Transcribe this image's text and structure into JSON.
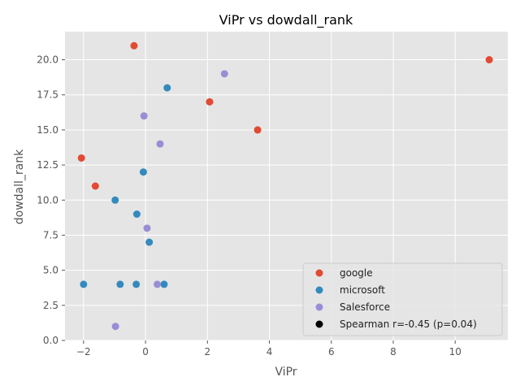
{
  "chart_data": {
    "type": "scatter",
    "title": "ViPr vs dowdall_rank",
    "xlabel": "ViPr",
    "ylabel": "dowdall_rank",
    "xlim": [
      -2.6,
      11.7
    ],
    "ylim": [
      0,
      22
    ],
    "xticks": [
      -2,
      0,
      2,
      4,
      6,
      8,
      10
    ],
    "yticks": [
      0.0,
      2.5,
      5.0,
      7.5,
      10.0,
      12.5,
      15.0,
      17.5,
      20.0
    ],
    "xtick_labels": [
      "−2",
      "0",
      "2",
      "4",
      "6",
      "8",
      "10"
    ],
    "ytick_labels": [
      "0.0",
      "2.5",
      "5.0",
      "7.5",
      "10.0",
      "12.5",
      "15.0",
      "17.5",
      "20.0"
    ],
    "grid": true,
    "legend_position": "lower-right",
    "series": [
      {
        "name": "google",
        "color": "#E24A33",
        "points": [
          {
            "x": -0.37,
            "y": 21
          },
          {
            "x": 11.1,
            "y": 20
          },
          {
            "x": 2.07,
            "y": 17
          },
          {
            "x": 3.62,
            "y": 15
          },
          {
            "x": -2.07,
            "y": 13
          },
          {
            "x": -1.62,
            "y": 11
          }
        ]
      },
      {
        "name": "microsoft",
        "color": "#348ABD",
        "points": [
          {
            "x": 0.7,
            "y": 18
          },
          {
            "x": -0.07,
            "y": 12
          },
          {
            "x": -0.98,
            "y": 10
          },
          {
            "x": -0.28,
            "y": 9
          },
          {
            "x": 0.12,
            "y": 7
          },
          {
            "x": -2.0,
            "y": 4
          },
          {
            "x": -0.82,
            "y": 4
          },
          {
            "x": -0.3,
            "y": 4
          },
          {
            "x": 0.6,
            "y": 4
          }
        ]
      },
      {
        "name": "Salesforce",
        "color": "#988ED5",
        "points": [
          {
            "x": 2.55,
            "y": 19
          },
          {
            "x": -0.05,
            "y": 16
          },
          {
            "x": 0.47,
            "y": 14
          },
          {
            "x": 0.05,
            "y": 8
          },
          {
            "x": 0.38,
            "y": 4
          },
          {
            "x": -0.97,
            "y": 1
          }
        ]
      }
    ],
    "annotation_entry": {
      "label": "Spearman r=-0.45 (p=0.04)",
      "color": "#000000"
    }
  }
}
